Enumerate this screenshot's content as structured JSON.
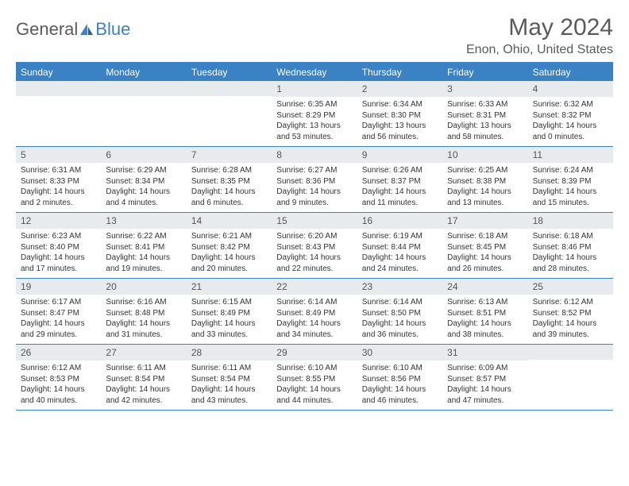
{
  "logo": {
    "text1": "General",
    "text2": "Blue"
  },
  "title": "May 2024",
  "location": "Enon, Ohio, United States",
  "colors": {
    "accent": "#3b82c4",
    "header_bg": "#e8ebee",
    "text": "#333333",
    "muted": "#5a5a5a"
  },
  "weekdays": [
    "Sunday",
    "Monday",
    "Tuesday",
    "Wednesday",
    "Thursday",
    "Friday",
    "Saturday"
  ],
  "weeks": [
    [
      {
        "empty": true
      },
      {
        "empty": true
      },
      {
        "empty": true
      },
      {
        "num": "1",
        "sunrise": "Sunrise: 6:35 AM",
        "sunset": "Sunset: 8:29 PM",
        "daylight": "Daylight: 13 hours and 53 minutes."
      },
      {
        "num": "2",
        "sunrise": "Sunrise: 6:34 AM",
        "sunset": "Sunset: 8:30 PM",
        "daylight": "Daylight: 13 hours and 56 minutes."
      },
      {
        "num": "3",
        "sunrise": "Sunrise: 6:33 AM",
        "sunset": "Sunset: 8:31 PM",
        "daylight": "Daylight: 13 hours and 58 minutes."
      },
      {
        "num": "4",
        "sunrise": "Sunrise: 6:32 AM",
        "sunset": "Sunset: 8:32 PM",
        "daylight": "Daylight: 14 hours and 0 minutes."
      }
    ],
    [
      {
        "num": "5",
        "sunrise": "Sunrise: 6:31 AM",
        "sunset": "Sunset: 8:33 PM",
        "daylight": "Daylight: 14 hours and 2 minutes."
      },
      {
        "num": "6",
        "sunrise": "Sunrise: 6:29 AM",
        "sunset": "Sunset: 8:34 PM",
        "daylight": "Daylight: 14 hours and 4 minutes."
      },
      {
        "num": "7",
        "sunrise": "Sunrise: 6:28 AM",
        "sunset": "Sunset: 8:35 PM",
        "daylight": "Daylight: 14 hours and 6 minutes."
      },
      {
        "num": "8",
        "sunrise": "Sunrise: 6:27 AM",
        "sunset": "Sunset: 8:36 PM",
        "daylight": "Daylight: 14 hours and 9 minutes."
      },
      {
        "num": "9",
        "sunrise": "Sunrise: 6:26 AM",
        "sunset": "Sunset: 8:37 PM",
        "daylight": "Daylight: 14 hours and 11 minutes."
      },
      {
        "num": "10",
        "sunrise": "Sunrise: 6:25 AM",
        "sunset": "Sunset: 8:38 PM",
        "daylight": "Daylight: 14 hours and 13 minutes."
      },
      {
        "num": "11",
        "sunrise": "Sunrise: 6:24 AM",
        "sunset": "Sunset: 8:39 PM",
        "daylight": "Daylight: 14 hours and 15 minutes."
      }
    ],
    [
      {
        "num": "12",
        "sunrise": "Sunrise: 6:23 AM",
        "sunset": "Sunset: 8:40 PM",
        "daylight": "Daylight: 14 hours and 17 minutes."
      },
      {
        "num": "13",
        "sunrise": "Sunrise: 6:22 AM",
        "sunset": "Sunset: 8:41 PM",
        "daylight": "Daylight: 14 hours and 19 minutes."
      },
      {
        "num": "14",
        "sunrise": "Sunrise: 6:21 AM",
        "sunset": "Sunset: 8:42 PM",
        "daylight": "Daylight: 14 hours and 20 minutes."
      },
      {
        "num": "15",
        "sunrise": "Sunrise: 6:20 AM",
        "sunset": "Sunset: 8:43 PM",
        "daylight": "Daylight: 14 hours and 22 minutes."
      },
      {
        "num": "16",
        "sunrise": "Sunrise: 6:19 AM",
        "sunset": "Sunset: 8:44 PM",
        "daylight": "Daylight: 14 hours and 24 minutes."
      },
      {
        "num": "17",
        "sunrise": "Sunrise: 6:18 AM",
        "sunset": "Sunset: 8:45 PM",
        "daylight": "Daylight: 14 hours and 26 minutes."
      },
      {
        "num": "18",
        "sunrise": "Sunrise: 6:18 AM",
        "sunset": "Sunset: 8:46 PM",
        "daylight": "Daylight: 14 hours and 28 minutes."
      }
    ],
    [
      {
        "num": "19",
        "sunrise": "Sunrise: 6:17 AM",
        "sunset": "Sunset: 8:47 PM",
        "daylight": "Daylight: 14 hours and 29 minutes."
      },
      {
        "num": "20",
        "sunrise": "Sunrise: 6:16 AM",
        "sunset": "Sunset: 8:48 PM",
        "daylight": "Daylight: 14 hours and 31 minutes."
      },
      {
        "num": "21",
        "sunrise": "Sunrise: 6:15 AM",
        "sunset": "Sunset: 8:49 PM",
        "daylight": "Daylight: 14 hours and 33 minutes."
      },
      {
        "num": "22",
        "sunrise": "Sunrise: 6:14 AM",
        "sunset": "Sunset: 8:49 PM",
        "daylight": "Daylight: 14 hours and 34 minutes."
      },
      {
        "num": "23",
        "sunrise": "Sunrise: 6:14 AM",
        "sunset": "Sunset: 8:50 PM",
        "daylight": "Daylight: 14 hours and 36 minutes."
      },
      {
        "num": "24",
        "sunrise": "Sunrise: 6:13 AM",
        "sunset": "Sunset: 8:51 PM",
        "daylight": "Daylight: 14 hours and 38 minutes."
      },
      {
        "num": "25",
        "sunrise": "Sunrise: 6:12 AM",
        "sunset": "Sunset: 8:52 PM",
        "daylight": "Daylight: 14 hours and 39 minutes."
      }
    ],
    [
      {
        "num": "26",
        "sunrise": "Sunrise: 6:12 AM",
        "sunset": "Sunset: 8:53 PM",
        "daylight": "Daylight: 14 hours and 40 minutes."
      },
      {
        "num": "27",
        "sunrise": "Sunrise: 6:11 AM",
        "sunset": "Sunset: 8:54 PM",
        "daylight": "Daylight: 14 hours and 42 minutes."
      },
      {
        "num": "28",
        "sunrise": "Sunrise: 6:11 AM",
        "sunset": "Sunset: 8:54 PM",
        "daylight": "Daylight: 14 hours and 43 minutes."
      },
      {
        "num": "29",
        "sunrise": "Sunrise: 6:10 AM",
        "sunset": "Sunset: 8:55 PM",
        "daylight": "Daylight: 14 hours and 44 minutes."
      },
      {
        "num": "30",
        "sunrise": "Sunrise: 6:10 AM",
        "sunset": "Sunset: 8:56 PM",
        "daylight": "Daylight: 14 hours and 46 minutes."
      },
      {
        "num": "31",
        "sunrise": "Sunrise: 6:09 AM",
        "sunset": "Sunset: 8:57 PM",
        "daylight": "Daylight: 14 hours and 47 minutes."
      },
      {
        "empty": true
      }
    ]
  ]
}
